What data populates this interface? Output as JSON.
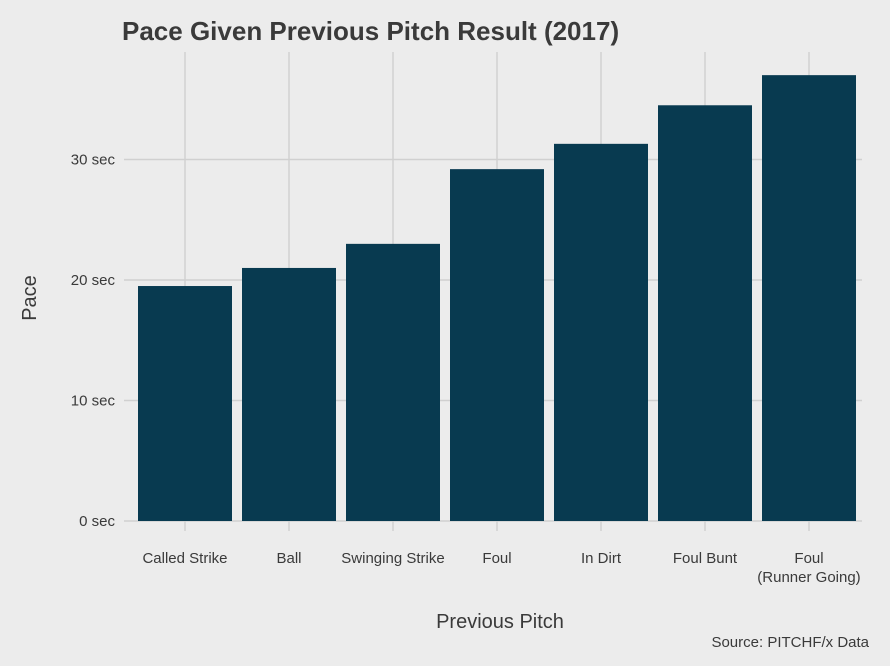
{
  "chart_data": {
    "type": "bar",
    "title": "Pace Given Previous Pitch Result (2017)",
    "xlabel": "Previous Pitch",
    "ylabel": "Pace",
    "source": "Source: PITCHF/x Data",
    "categories": [
      [
        "Called Strike"
      ],
      [
        "Ball"
      ],
      [
        "Swinging Strike"
      ],
      [
        "Foul"
      ],
      [
        "In Dirt"
      ],
      [
        "Foul Bunt"
      ],
      [
        "Foul",
        "(Runner Going)"
      ]
    ],
    "values": [
      19.5,
      21.0,
      23.0,
      29.2,
      31.3,
      34.5,
      37.0
    ],
    "yticks": [
      {
        "value": 0,
        "label": "0 sec"
      },
      {
        "value": 10,
        "label": "10 sec"
      },
      {
        "value": 20,
        "label": "20 sec"
      },
      {
        "value": 30,
        "label": "30 sec"
      }
    ],
    "ylim": [
      0,
      40
    ],
    "grid": true,
    "legend": "none",
    "colors": {
      "bar": "#083a50",
      "background": "#ececec",
      "grid": "#d0d0d0",
      "text": "#3a3a3a"
    }
  }
}
